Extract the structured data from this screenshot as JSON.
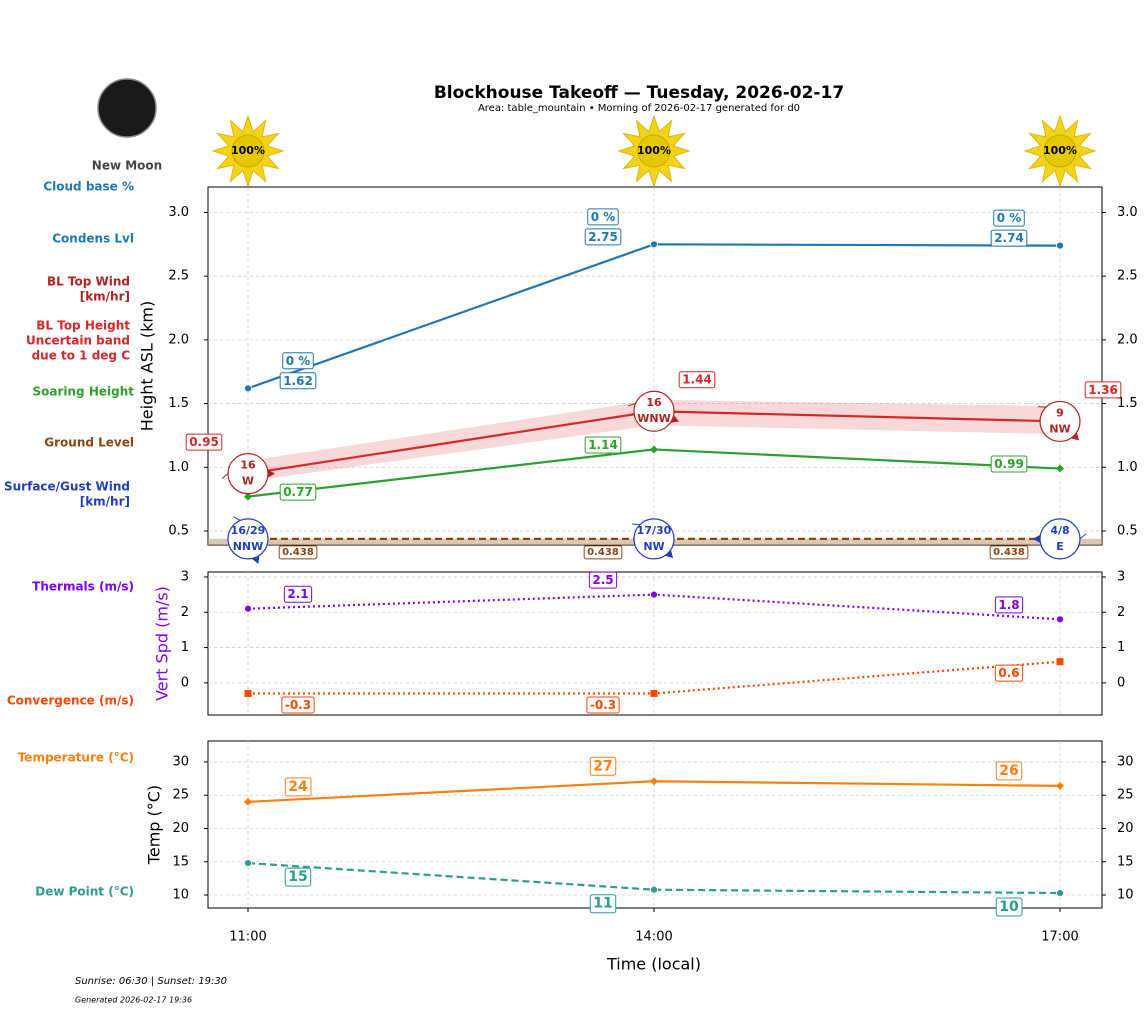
{
  "title": "Blockhouse Takeoff — Tuesday, 2026-02-17",
  "subtitle": "Area: table_mountain • Morning of 2026-02-17 generated for d0",
  "moon": {
    "phase": "New Moon"
  },
  "sun": {
    "values": [
      100,
      100,
      100
    ],
    "value_labels": [
      "100%",
      "100%",
      "100%"
    ]
  },
  "chart_data": [
    {
      "type": "line",
      "ylabel": "Height ASL (km)",
      "ylim": [
        0.39,
        3.2
      ],
      "yticks": [
        0.5,
        {
          "value": 1,
          "label": "1.0"
        },
        1.5,
        {
          "value": 2,
          "label": "2.0"
        },
        2.5,
        {
          "value": 3,
          "label": "3.0"
        }
      ],
      "grid": true,
      "series": [
        {
          "type": "label",
          "name": [
            "Cloud base %"
          ],
          "color": "#1f77b4",
          "values": [
            0,
            0,
            0
          ],
          "value_labels": [
            "0 %",
            "0 %",
            "0 %"
          ]
        },
        {
          "type": "line",
          "name": [
            "Condens Lvl"
          ],
          "color": "#1f77b4",
          "values": [
            1.62,
            2.75,
            2.74
          ],
          "style": "solid",
          "marker": "circle"
        },
        {
          "type": "wind",
          "name": [
            "BL Top Wind",
            "[km/hr]"
          ],
          "color": "#b22222",
          "values": [
            16,
            16,
            9
          ],
          "directions": [
            "W",
            "WNW",
            "NW"
          ]
        },
        {
          "type": "line",
          "name": [
            "BL Top Height",
            "Uncertain band",
            "due to 1 deg C"
          ],
          "color": "#d62728",
          "values": [
            0.95,
            1.44,
            1.36
          ],
          "band_low": [
            0.89,
            1.33,
            1.26
          ],
          "band_high": [
            1.05,
            1.53,
            1.48
          ],
          "style": "solid",
          "marker": "none"
        },
        {
          "type": "line",
          "name": [
            "Soaring Height"
          ],
          "color": "#2ca02c",
          "values": [
            0.77,
            1.14,
            0.99
          ],
          "style": "solid",
          "marker": "diamond"
        },
        {
          "type": "line",
          "name": [
            "Ground Level"
          ],
          "color": "#8b4513",
          "values": [
            0.438,
            0.438,
            0.438
          ],
          "style": "dashed",
          "marker": "none"
        },
        {
          "type": "wind",
          "name": [
            "Surface/Gust Wind",
            "[km/hr]"
          ],
          "color": "#1f3fbf",
          "values": [
            16,
            17,
            4
          ],
          "gusts": [
            29,
            30,
            8
          ],
          "value_labels": [
            "16/29",
            "17/30",
            "4/8"
          ],
          "directions": [
            "NNW",
            "NW",
            "E"
          ]
        }
      ]
    },
    {
      "type": "line",
      "ylabel": "Vert Spd (m/s)",
      "ylabel_color": "#7f00ff",
      "ylim": [
        -0.91,
        3.14
      ],
      "yticks": [
        0,
        1,
        2,
        3
      ],
      "grid": true,
      "series": [
        {
          "type": "line",
          "name": [
            "Thermals (m/s)"
          ],
          "color": "#7f00ff",
          "values": [
            2.1,
            2.5,
            1.8
          ],
          "style": "dotted",
          "marker": "circle"
        },
        {
          "type": "line",
          "name": [
            "Convergence (m/s)"
          ],
          "color": "#ff4500",
          "values": [
            -0.3,
            -0.3,
            0.6
          ],
          "style": "dotted",
          "marker": "square"
        }
      ]
    },
    {
      "type": "line",
      "ylabel": "Temp (°C)",
      "ylim": [
        8.05,
        33.15
      ],
      "yticks": [
        10,
        15,
        20,
        25,
        30
      ],
      "grid": true,
      "categories": [
        "11:00",
        "14:00",
        "17:00"
      ],
      "xlabel": "Time (local)",
      "series": [
        {
          "type": "line",
          "name": [
            "Temperature (°C)"
          ],
          "color": "#ff7f0e",
          "values": [
            24,
            27.1,
            26.4
          ],
          "value_labels": [
            "24",
            "27",
            "26"
          ],
          "style": "solid",
          "marker": "diamond"
        },
        {
          "type": "line",
          "name": [
            "Dew Point (°C)"
          ],
          "color": "#2a9d8f",
          "values": [
            14.8,
            10.8,
            10.3
          ],
          "value_labels": [
            "15",
            "11",
            "10"
          ],
          "style": "dashed",
          "marker": "circle"
        }
      ]
    }
  ],
  "footer": [
    "Sunrise: 06:30 | Sunset: 19:30",
    "Generated 2026-02-17 19:36"
  ]
}
